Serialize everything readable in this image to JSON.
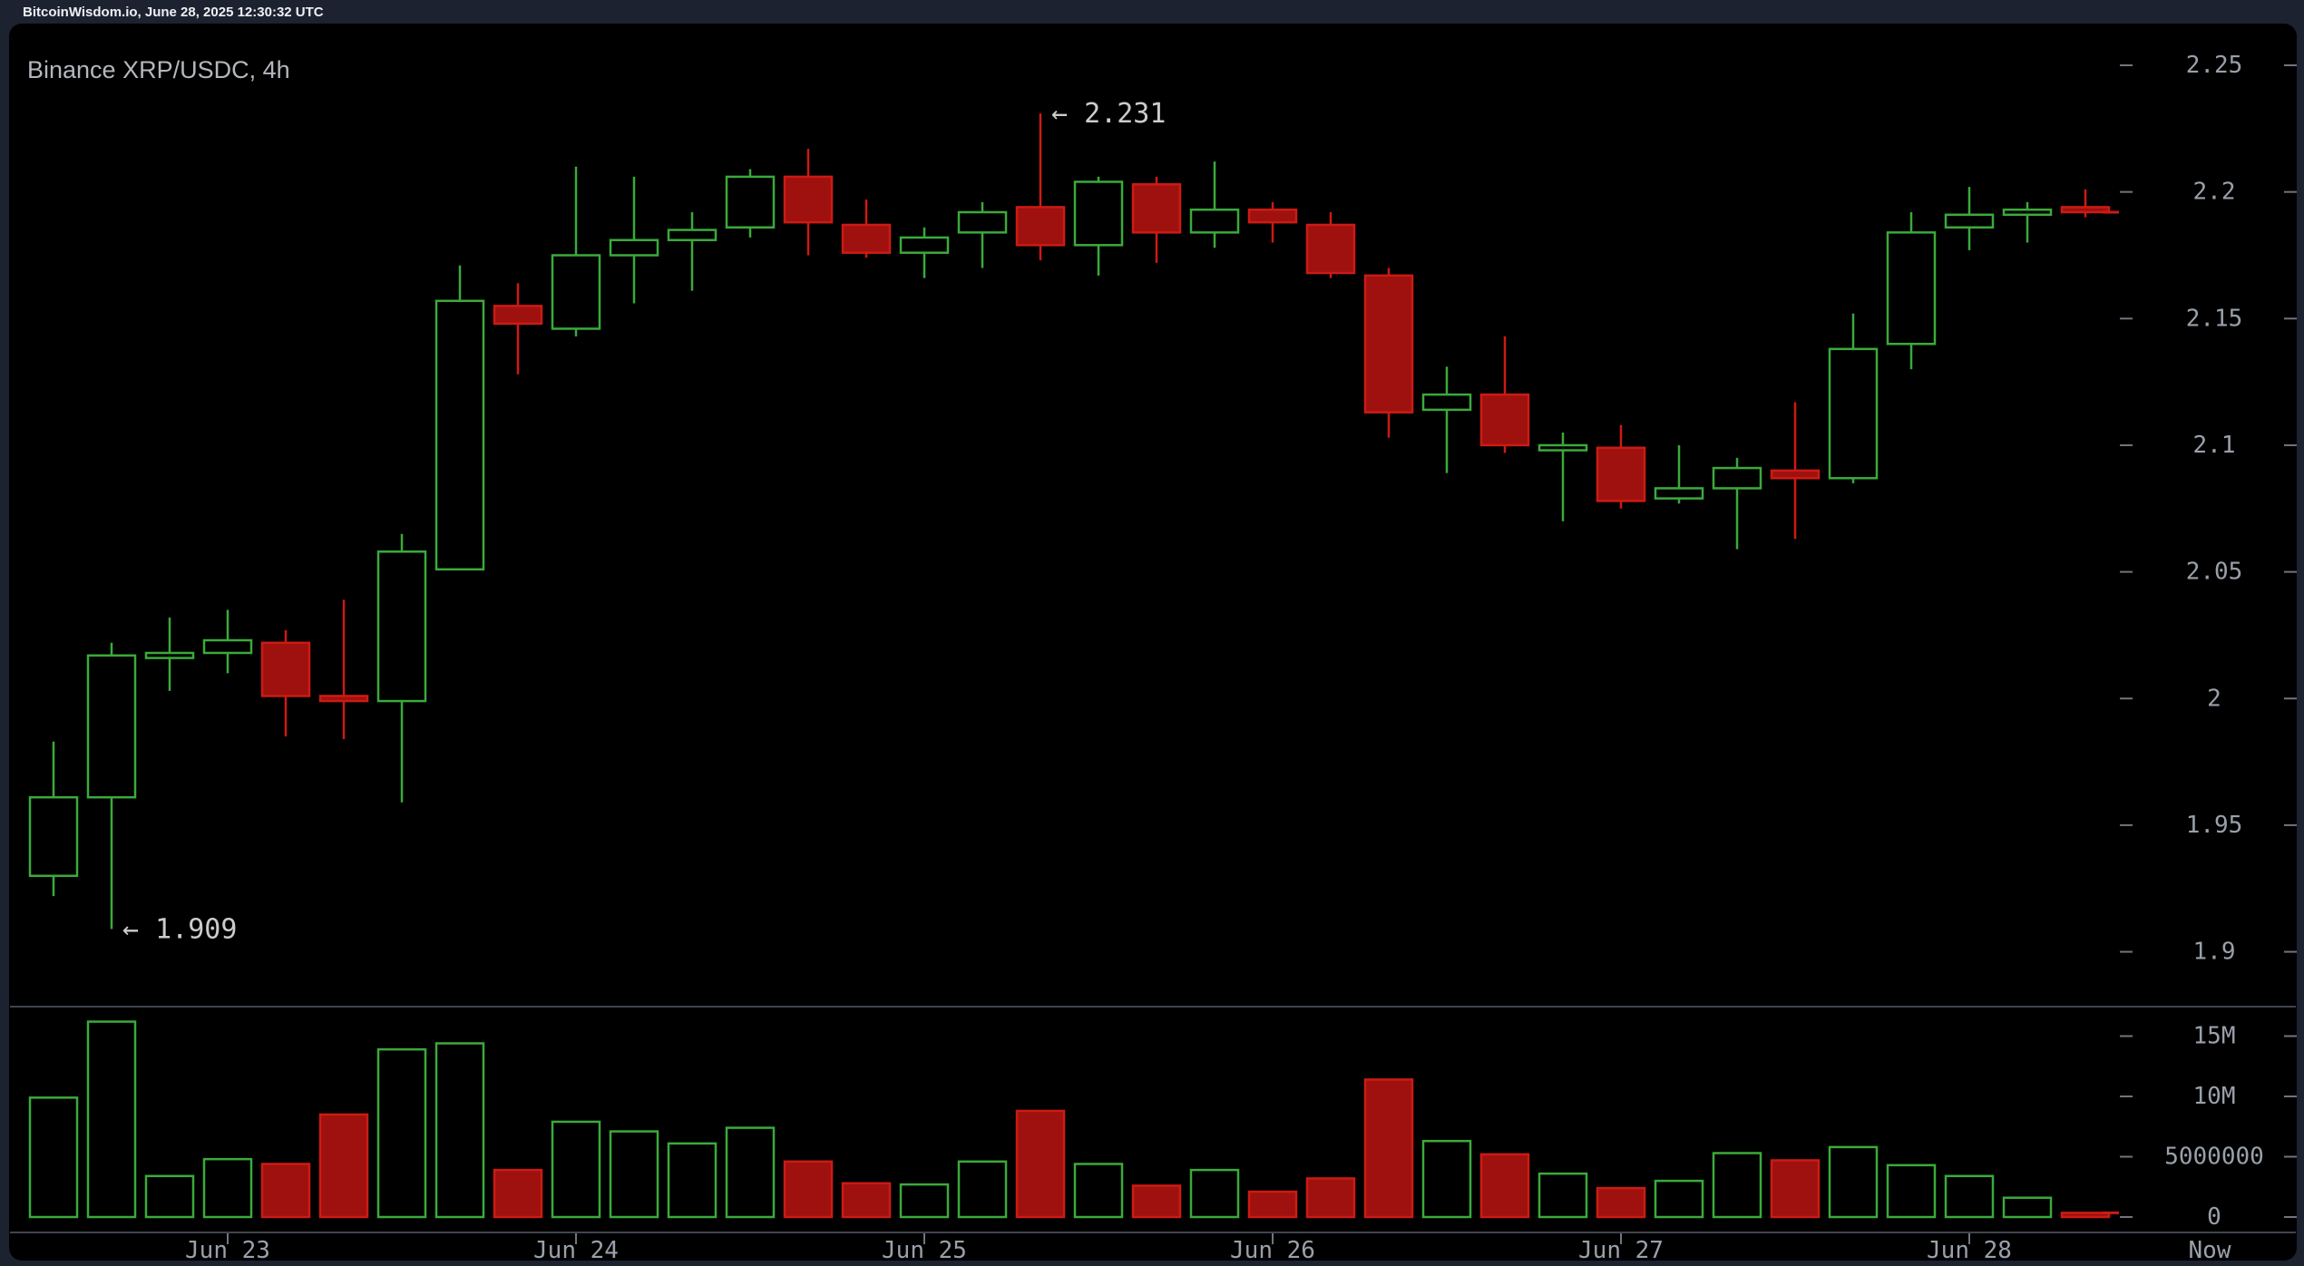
{
  "header": {
    "text": "BitcoinWisdom.io, June 28, 2025 12:30:32 UTC"
  },
  "chart": {
    "title": "Binance XRP/USDC, 4h"
  },
  "colors": {
    "page_bg": "#1c2230",
    "panel_bg": "#000000",
    "up": "#3baa3b",
    "down_fill": "#9e110e",
    "down_stroke": "#cc1b14",
    "tick": "#6f7580",
    "axis_label": "#9aa0aa",
    "divider": "#3f4450",
    "annotation": "#cccccc",
    "last_price_marker": "#cc1b14"
  },
  "price_axis": {
    "labels": [
      {
        "text": "2.25",
        "value": 2.25
      },
      {
        "text": "2.2",
        "value": 2.2
      },
      {
        "text": "2.15",
        "value": 2.15
      },
      {
        "text": "2.1",
        "value": 2.1
      },
      {
        "text": "2.05",
        "value": 2.05
      },
      {
        "text": "2",
        "value": 2.0
      },
      {
        "text": "1.95",
        "value": 1.95
      },
      {
        "text": "1.9",
        "value": 1.9
      }
    ]
  },
  "volume_axis": {
    "labels": [
      {
        "text": "15M",
        "value": 15000000
      },
      {
        "text": "10M",
        "value": 10000000
      },
      {
        "text": "5000000",
        "value": 5000000
      },
      {
        "text": "0",
        "value": 0
      }
    ]
  },
  "time_axis": {
    "days": [
      {
        "label": "Jun 23",
        "candle_index": 3
      },
      {
        "label": "Jun 24",
        "candle_index": 9
      },
      {
        "label": "Jun 25",
        "candle_index": 15
      },
      {
        "label": "Jun 26",
        "candle_index": 21
      },
      {
        "label": "Jun 27",
        "candle_index": 27
      },
      {
        "label": "Jun 28",
        "candle_index": 33
      }
    ],
    "now_label": "Now"
  },
  "annotations": {
    "high": {
      "text": "← 2.231",
      "price": 2.231,
      "candle_index": 17
    },
    "low": {
      "text": "← 1.909",
      "price": 1.909,
      "candle_index": 1
    }
  },
  "last_markers": {
    "price": 2.192,
    "volume": 350000
  },
  "chart_data": {
    "type": "candlestick",
    "title": "Binance XRP/USDC, 4h",
    "exchange": "Binance",
    "pair": "XRP/USDC",
    "interval": "4h",
    "price_axis_range": [
      1.9,
      2.25
    ],
    "volume_axis_range": [
      0,
      15000000
    ],
    "session_high": 2.231,
    "session_low": 1.909,
    "candles": [
      {
        "o": 1.93,
        "h": 1.983,
        "l": 1.922,
        "c": 1.961,
        "v": 9900000
      },
      {
        "o": 1.961,
        "h": 2.022,
        "l": 1.909,
        "c": 2.017,
        "v": 16200000
      },
      {
        "o": 2.016,
        "h": 2.032,
        "l": 2.003,
        "c": 2.018,
        "v": 3400000
      },
      {
        "o": 2.018,
        "h": 2.035,
        "l": 2.01,
        "c": 2.023,
        "v": 4800000
      },
      {
        "o": 2.022,
        "h": 2.027,
        "l": 1.985,
        "c": 2.001,
        "v": 4400000
      },
      {
        "o": 2.001,
        "h": 2.039,
        "l": 1.984,
        "c": 1.999,
        "v": 8500000
      },
      {
        "o": 1.999,
        "h": 2.065,
        "l": 1.959,
        "c": 2.058,
        "v": 13900000
      },
      {
        "o": 2.051,
        "h": 2.171,
        "l": 2.051,
        "c": 2.157,
        "v": 14400000
      },
      {
        "o": 2.155,
        "h": 2.164,
        "l": 2.128,
        "c": 2.148,
        "v": 3900000
      },
      {
        "o": 2.146,
        "h": 2.21,
        "l": 2.143,
        "c": 2.175,
        "v": 7900000
      },
      {
        "o": 2.175,
        "h": 2.206,
        "l": 2.156,
        "c": 2.181,
        "v": 7100000
      },
      {
        "o": 2.181,
        "h": 2.192,
        "l": 2.161,
        "c": 2.185,
        "v": 6100000
      },
      {
        "o": 2.186,
        "h": 2.209,
        "l": 2.182,
        "c": 2.206,
        "v": 7400000
      },
      {
        "o": 2.206,
        "h": 2.217,
        "l": 2.175,
        "c": 2.188,
        "v": 4600000
      },
      {
        "o": 2.187,
        "h": 2.197,
        "l": 2.174,
        "c": 2.176,
        "v": 2800000
      },
      {
        "o": 2.176,
        "h": 2.186,
        "l": 2.166,
        "c": 2.182,
        "v": 2700000
      },
      {
        "o": 2.184,
        "h": 2.196,
        "l": 2.17,
        "c": 2.192,
        "v": 4600000
      },
      {
        "o": 2.194,
        "h": 2.231,
        "l": 2.173,
        "c": 2.179,
        "v": 8800000
      },
      {
        "o": 2.179,
        "h": 2.206,
        "l": 2.167,
        "c": 2.204,
        "v": 4400000
      },
      {
        "o": 2.203,
        "h": 2.206,
        "l": 2.172,
        "c": 2.184,
        "v": 2600000
      },
      {
        "o": 2.184,
        "h": 2.212,
        "l": 2.178,
        "c": 2.193,
        "v": 3900000
      },
      {
        "o": 2.193,
        "h": 2.196,
        "l": 2.18,
        "c": 2.188,
        "v": 2100000
      },
      {
        "o": 2.187,
        "h": 2.192,
        "l": 2.166,
        "c": 2.168,
        "v": 3200000
      },
      {
        "o": 2.167,
        "h": 2.17,
        "l": 2.103,
        "c": 2.113,
        "v": 11400000
      },
      {
        "o": 2.114,
        "h": 2.131,
        "l": 2.089,
        "c": 2.12,
        "v": 6300000
      },
      {
        "o": 2.12,
        "h": 2.143,
        "l": 2.097,
        "c": 2.1,
        "v": 5200000
      },
      {
        "o": 2.098,
        "h": 2.105,
        "l": 2.07,
        "c": 2.1,
        "v": 3600000
      },
      {
        "o": 2.099,
        "h": 2.108,
        "l": 2.075,
        "c": 2.078,
        "v": 2400000
      },
      {
        "o": 2.079,
        "h": 2.1,
        "l": 2.077,
        "c": 2.083,
        "v": 3000000
      },
      {
        "o": 2.083,
        "h": 2.095,
        "l": 2.059,
        "c": 2.091,
        "v": 5300000
      },
      {
        "o": 2.09,
        "h": 2.117,
        "l": 2.063,
        "c": 2.087,
        "v": 4700000
      },
      {
        "o": 2.087,
        "h": 2.152,
        "l": 2.085,
        "c": 2.138,
        "v": 5800000
      },
      {
        "o": 2.14,
        "h": 2.192,
        "l": 2.13,
        "c": 2.184,
        "v": 4300000
      },
      {
        "o": 2.186,
        "h": 2.202,
        "l": 2.177,
        "c": 2.191,
        "v": 3400000
      },
      {
        "o": 2.191,
        "h": 2.196,
        "l": 2.18,
        "c": 2.193,
        "v": 1600000
      },
      {
        "o": 2.194,
        "h": 2.201,
        "l": 2.19,
        "c": 2.192,
        "v": 350000
      }
    ]
  }
}
